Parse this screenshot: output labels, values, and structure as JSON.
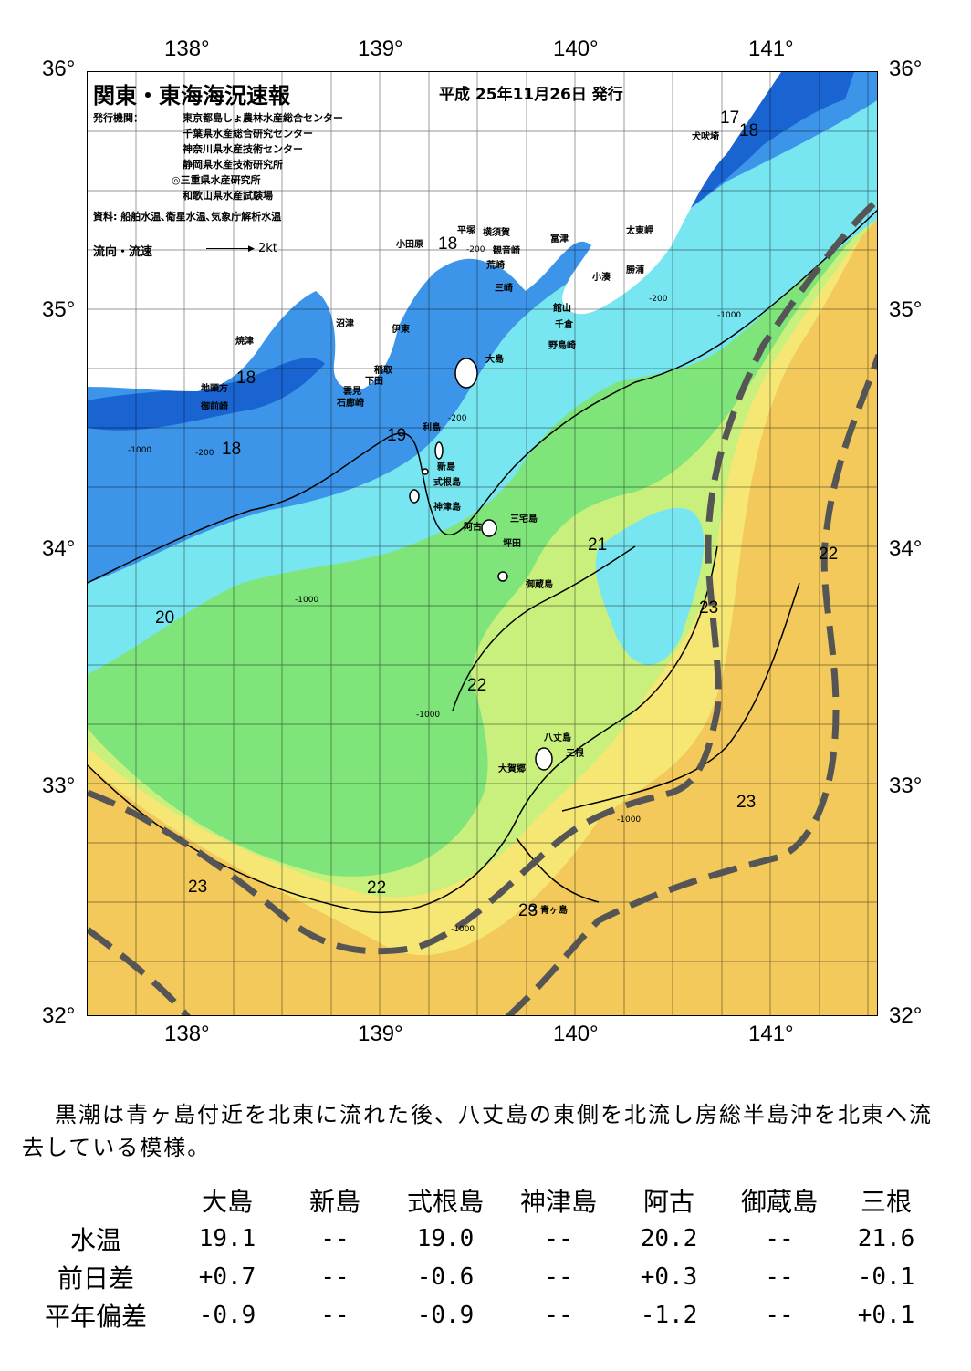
{
  "map": {
    "title": "関東・東海海況速報",
    "issue_date": "平成 25年11月26日 発行",
    "issuer_label": "発行機関：",
    "issuers": [
      "東京都島しょ農林水産総合センター",
      "千葉県水産総合研究センター",
      "神奈川県水産技術センター",
      "静岡県水産技術研究所",
      "◎三重県水産研究所",
      "和歌山県水産試験場"
    ],
    "sources": "資料: 船舶水温､衛星水温､気象庁解析水温",
    "flow_label": "流向・流速",
    "flow_scale": "2kt",
    "lon_labels": [
      "138°",
      "139°",
      "140°",
      "141°"
    ],
    "lat_labels": [
      "36°",
      "35°",
      "34°",
      "33°",
      "32°"
    ],
    "isotherm_labels": [
      "17",
      "18",
      "18",
      "18",
      "18",
      "19",
      "20",
      "21",
      "22",
      "22",
      "22",
      "23",
      "23",
      "23",
      "23"
    ],
    "depth_labels": [
      "-200",
      "-1000"
    ],
    "places": [
      "犬吠埼",
      "太東岬",
      "勝浦",
      "小湊",
      "富津",
      "横須賀",
      "観音崎",
      "平塚",
      "小田原",
      "荒崎",
      "三崎",
      "館山",
      "千倉",
      "野島崎",
      "沼津",
      "伊東",
      "焼津",
      "稲取",
      "下田",
      "雲見",
      "石廊崎",
      "地頭方",
      "御前崎",
      "大島",
      "利島",
      "新島",
      "式根島",
      "神津島",
      "三宅島",
      "阿古",
      "坪田",
      "御蔵島",
      "八丈島",
      "三根",
      "大賀郷",
      "青ヶ島"
    ],
    "colors": {
      "cold_blue": "#1a64d2",
      "blue": "#3d95ea",
      "cyan": "#78e6f0",
      "green": "#7fe47a",
      "yellow_green": "#c9f07c",
      "yellow": "#f6e775",
      "orange": "#f2c95a",
      "kuroshio_axis": "#555555"
    }
  },
  "summary": "黒潮は青ヶ島付近を北東に流れた後、八丈島の東側を北流し房総半島沖を北東へ流去している模様。",
  "table": {
    "headers": [
      "大島",
      "新島",
      "式根島",
      "神津島",
      "阿古",
      "御蔵島",
      "三根"
    ],
    "rows": [
      {
        "label": "水温",
        "values": [
          "19.1",
          "--",
          "19.0",
          "--",
          "20.2",
          "--",
          "21.6"
        ]
      },
      {
        "label": "前日差",
        "values": [
          "+0.7",
          "--",
          "-0.6",
          "--",
          "+0.3",
          "--",
          "-0.1"
        ]
      },
      {
        "label": "平年偏差",
        "values": [
          "-0.9",
          "--",
          "-0.9",
          "--",
          "-1.2",
          "--",
          "+0.1"
        ]
      }
    ]
  }
}
